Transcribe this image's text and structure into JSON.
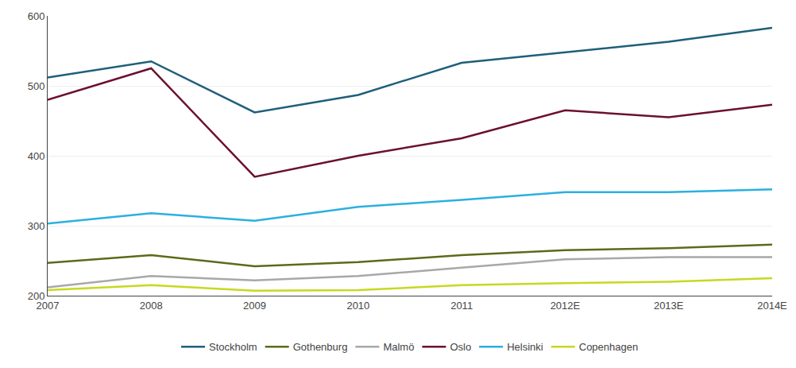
{
  "chart_data": {
    "type": "line",
    "categories": [
      "2007",
      "2008",
      "2009",
      "2010",
      "2011",
      "2012E",
      "2013E",
      "2014E"
    ],
    "series": [
      {
        "name": "Stockholm",
        "color": "#1f5f7a",
        "values": [
          512,
          535,
          462,
          487,
          533,
          548,
          563,
          583
        ]
      },
      {
        "name": "Gothenburg",
        "color": "#5a6b1a",
        "values": [
          247,
          258,
          242,
          248,
          258,
          265,
          268,
          273
        ]
      },
      {
        "name": "Malmö",
        "color": "#a8a8a8",
        "values": [
          212,
          228,
          222,
          228,
          240,
          252,
          255,
          255
        ]
      },
      {
        "name": "Oslo",
        "color": "#6b1030",
        "values": [
          480,
          525,
          370,
          400,
          425,
          465,
          455,
          473
        ]
      },
      {
        "name": "Helsinki",
        "color": "#2ab0e0",
        "values": [
          303,
          318,
          307,
          327,
          337,
          348,
          348,
          352
        ]
      },
      {
        "name": "Copenhagen",
        "color": "#c8d820",
        "values": [
          208,
          215,
          207,
          208,
          215,
          218,
          220,
          225
        ]
      }
    ],
    "ylim": [
      200,
      600
    ],
    "yticks": [
      200,
      300,
      400,
      500,
      600
    ],
    "grid": true,
    "legend": "bottom"
  }
}
